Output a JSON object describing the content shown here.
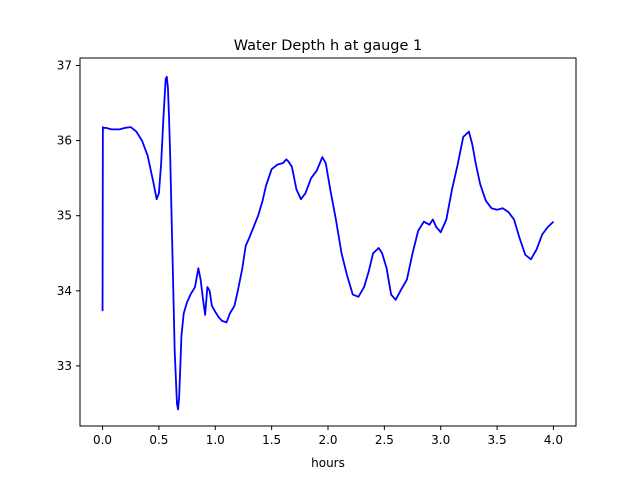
{
  "chart_data": {
    "type": "line",
    "title": "Water Depth h at gauge 1",
    "xlabel": "hours",
    "ylabel": "",
    "xlim": [
      -0.2,
      4.2
    ],
    "ylim": [
      32.2,
      37.1
    ],
    "xticks": [
      0.0,
      0.5,
      1.0,
      1.5,
      2.0,
      2.5,
      3.0,
      3.5,
      4.0
    ],
    "xtick_labels": [
      "0.0",
      "0.5",
      "1.0",
      "1.5",
      "2.0",
      "2.5",
      "3.0",
      "3.5",
      "4.0"
    ],
    "yticks": [
      33,
      34,
      35,
      36,
      37
    ],
    "ytick_labels": [
      "33",
      "34",
      "35",
      "36",
      "37"
    ],
    "grid": false,
    "legend": "none",
    "series": [
      {
        "color": "#0000ff",
        "x": [
          0.0,
          0.003,
          0.006,
          0.03,
          0.08,
          0.15,
          0.2,
          0.25,
          0.3,
          0.35,
          0.4,
          0.45,
          0.48,
          0.5,
          0.52,
          0.54,
          0.56,
          0.57,
          0.58,
          0.59,
          0.6,
          0.62,
          0.64,
          0.66,
          0.67,
          0.68,
          0.7,
          0.72,
          0.75,
          0.78,
          0.8,
          0.82,
          0.85,
          0.87,
          0.89,
          0.91,
          0.93,
          0.95,
          0.97,
          1.0,
          1.03,
          1.06,
          1.1,
          1.13,
          1.17,
          1.2,
          1.24,
          1.27,
          1.3,
          1.34,
          1.38,
          1.42,
          1.45,
          1.5,
          1.55,
          1.6,
          1.63,
          1.65,
          1.68,
          1.72,
          1.76,
          1.8,
          1.85,
          1.9,
          1.95,
          1.98,
          2.02,
          2.07,
          2.12,
          2.17,
          2.22,
          2.27,
          2.32,
          2.36,
          2.4,
          2.45,
          2.48,
          2.52,
          2.56,
          2.6,
          2.65,
          2.7,
          2.75,
          2.8,
          2.85,
          2.9,
          2.93,
          2.96,
          3.0,
          3.05,
          3.1,
          3.15,
          3.2,
          3.25,
          3.28,
          3.31,
          3.35,
          3.4,
          3.45,
          3.5,
          3.55,
          3.6,
          3.65,
          3.7,
          3.75,
          3.8,
          3.85,
          3.9,
          3.95,
          4.0
        ],
        "y": [
          33.73,
          36.18,
          36.17,
          36.17,
          36.15,
          36.15,
          36.17,
          36.18,
          36.12,
          36.0,
          35.8,
          35.45,
          35.22,
          35.3,
          35.7,
          36.3,
          36.82,
          36.85,
          36.7,
          36.3,
          35.8,
          34.5,
          33.2,
          32.5,
          32.42,
          32.6,
          33.4,
          33.7,
          33.85,
          33.95,
          34.0,
          34.05,
          34.3,
          34.15,
          33.9,
          33.68,
          34.05,
          34.0,
          33.8,
          33.72,
          33.65,
          33.6,
          33.58,
          33.7,
          33.8,
          34.0,
          34.3,
          34.6,
          34.7,
          34.85,
          35.0,
          35.2,
          35.4,
          35.62,
          35.68,
          35.7,
          35.75,
          35.72,
          35.65,
          35.35,
          35.22,
          35.3,
          35.5,
          35.6,
          35.78,
          35.7,
          35.35,
          34.95,
          34.5,
          34.2,
          33.95,
          33.92,
          34.05,
          34.25,
          34.5,
          34.57,
          34.5,
          34.3,
          33.95,
          33.88,
          34.02,
          34.15,
          34.5,
          34.8,
          34.92,
          34.88,
          34.95,
          34.85,
          34.78,
          34.95,
          35.35,
          35.68,
          36.05,
          36.12,
          35.95,
          35.7,
          35.42,
          35.2,
          35.1,
          35.08,
          35.1,
          35.05,
          34.95,
          34.7,
          34.48,
          34.42,
          34.55,
          34.75,
          34.85,
          34.92
        ]
      }
    ]
  }
}
